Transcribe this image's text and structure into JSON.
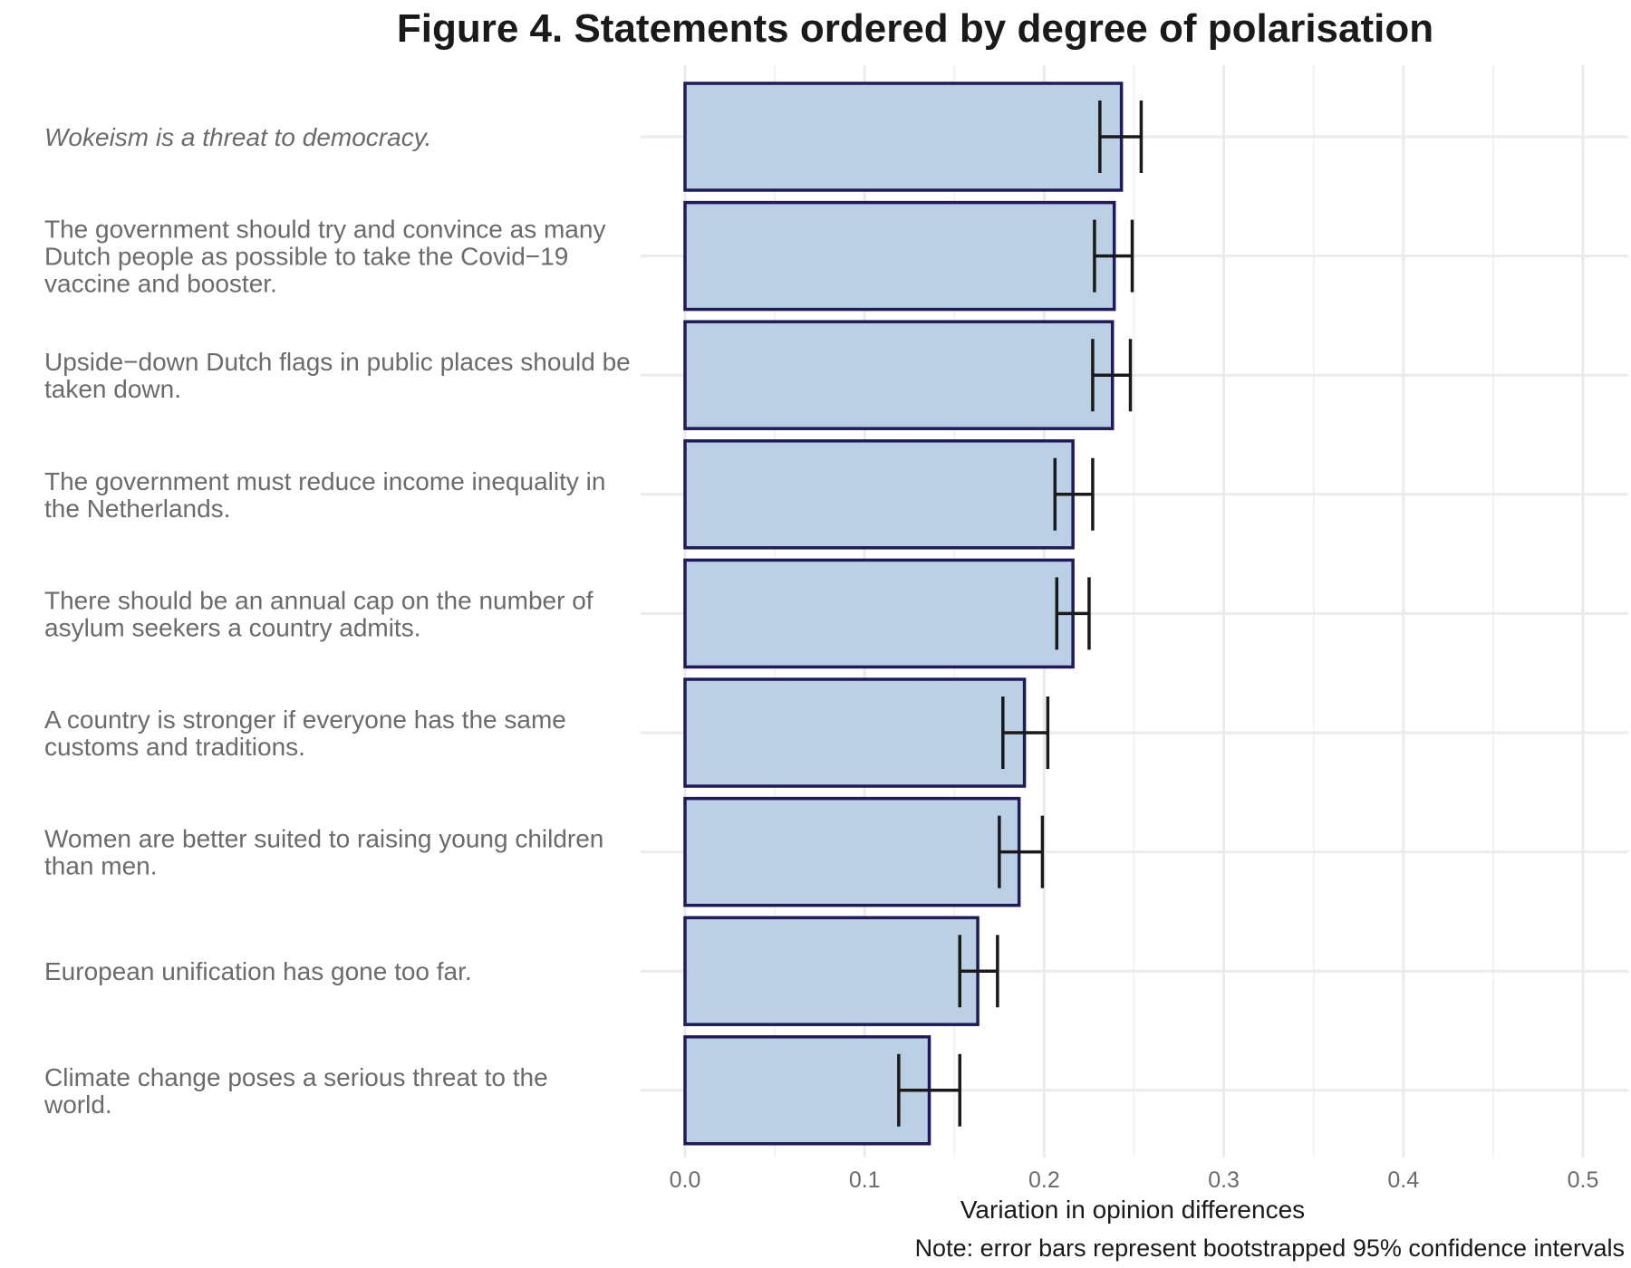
{
  "chart_data": {
    "type": "bar",
    "orientation": "horizontal",
    "title": "Figure 4. Statements ordered by degree of polarisation",
    "xlabel": "Variation in opinion differences",
    "ylabel": "",
    "xlim": [
      0,
      0.5
    ],
    "x_ticks": [
      "0.0",
      "0.1",
      "0.2",
      "0.3",
      "0.4",
      "0.5"
    ],
    "x_tick_values": [
      0,
      0.1,
      0.2,
      0.3,
      0.4,
      0.5
    ],
    "grid": true,
    "legend": "none",
    "note": "Note: error bars represent bootstrapped 95% confidence intervals",
    "bar_fill": "#bcd0e5",
    "bar_stroke": "#1f1a5c",
    "errorbar_color": "#1a1a1a",
    "categories": [
      {
        "lines": [
          "Wokeism is a threat to democracy."
        ],
        "italic": true
      },
      {
        "lines": [
          "The government should try and convince as many",
          "Dutch people as possible to take the Covid−19",
          "vaccine and booster."
        ]
      },
      {
        "lines": [
          "Upside−down Dutch flags in public places should be",
          "taken down."
        ]
      },
      {
        "lines": [
          "The government must reduce income inequality in",
          "the Netherlands."
        ]
      },
      {
        "lines": [
          "There should be an annual cap on the number of",
          "asylum seekers a country admits."
        ]
      },
      {
        "lines": [
          "A country is stronger if everyone has the same",
          "customs and traditions."
        ]
      },
      {
        "lines": [
          "Women are better suited to raising young children",
          "than men."
        ]
      },
      {
        "lines": [
          "European unification has gone too far."
        ]
      },
      {
        "lines": [
          "Climate change poses a serious threat to the",
          "world."
        ]
      }
    ],
    "values": [
      0.243,
      0.239,
      0.238,
      0.216,
      0.216,
      0.189,
      0.186,
      0.163,
      0.136
    ],
    "ci_low": [
      0.231,
      0.228,
      0.227,
      0.206,
      0.207,
      0.177,
      0.175,
      0.153,
      0.119
    ],
    "ci_high": [
      0.254,
      0.249,
      0.248,
      0.227,
      0.225,
      0.202,
      0.199,
      0.174,
      0.153
    ]
  }
}
